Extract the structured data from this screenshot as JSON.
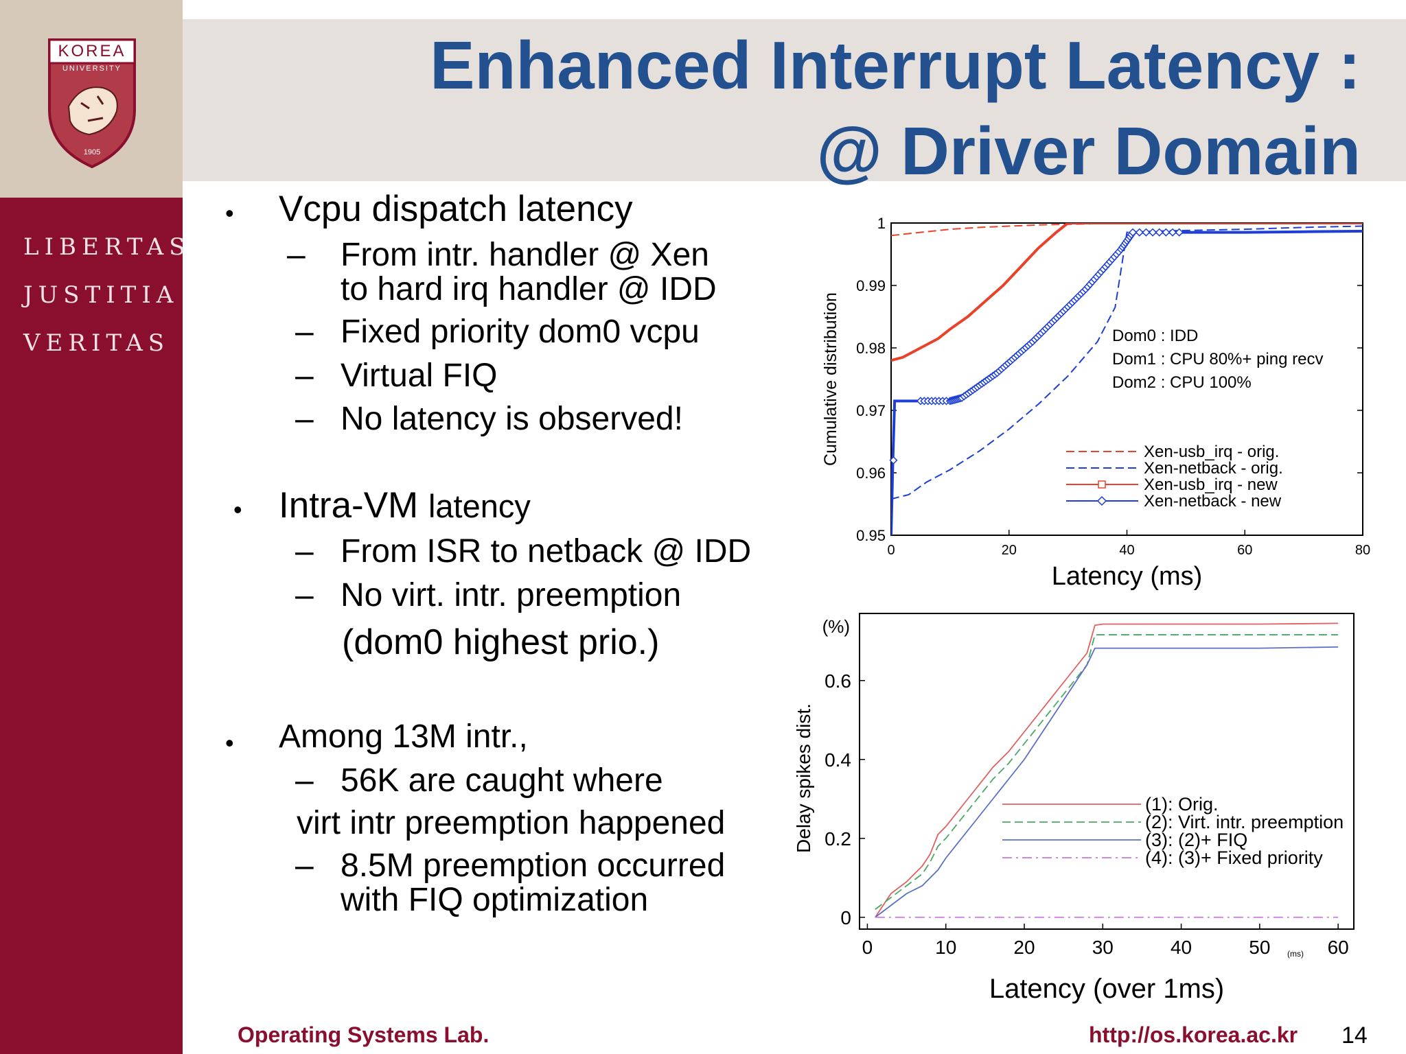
{
  "slide": {
    "title_line1": "Enhanced Interrupt Latency :",
    "title_line2": "@ Driver Domain",
    "footer_lab": "Operating Systems Lab.",
    "footer_url": "http://os.korea.ac.kr",
    "page_number": "14"
  },
  "logo": {
    "top_text": "KOREA",
    "sub_text": "UNIVERSITY",
    "year": "1905",
    "motto": [
      "LIBERTAS",
      "JUSTITIA",
      "VERITAS"
    ]
  },
  "bullets": [
    {
      "text": "Vcpu dispatch latency",
      "subs": [
        "From intr. handler @ Xen",
        "to hard irq handler @ IDD",
        "Fixed priority dom0 vcpu",
        "Virtual FIQ",
        "No latency is observed!"
      ]
    },
    {
      "text_main": "Intra-VM",
      "text_small": "latency",
      "subs": [
        "From ISR to netback @ IDD",
        "No virt. intr. preemption",
        "(dom0 highest prio.)"
      ]
    },
    {
      "text": "Among 13M intr.,",
      "subs": [
        "56K are caught where",
        "virt intr preemption happened",
        "8.5M preemption occurred",
        "with FIQ optimization"
      ]
    }
  ],
  "chart_data": [
    {
      "type": "line",
      "xlabel": "Latency (ms)",
      "ylabel": "Cumulative distribution",
      "xlim": [
        0,
        80
      ],
      "ylim": [
        0.95,
        1
      ],
      "xticks": [
        "0",
        "20",
        "40",
        "60",
        "80"
      ],
      "yticks": [
        "0.95",
        "0.96",
        "0.97",
        "0.98",
        "0.99",
        "1"
      ],
      "annotations": [
        "Dom0 : IDD",
        "Dom1 : CPU 80%+ ping recv",
        "Dom2 : CPU 100%"
      ],
      "legend_position": "bottom-right",
      "series": [
        {
          "name": "Xen-usb_irq - orig.",
          "color": "#e8422a",
          "style": "dashed",
          "x": [
            0,
            5,
            10,
            15,
            20,
            25,
            30,
            35,
            40,
            50,
            60,
            80
          ],
          "y": [
            0.998,
            0.9985,
            0.999,
            0.9993,
            0.9995,
            0.9997,
            0.9998,
            0.9999,
            1.0,
            1.0,
            1.0,
            1.0
          ]
        },
        {
          "name": "Xen-netback - orig.",
          "color": "#1d3fd6",
          "style": "dashed",
          "x": [
            0,
            3,
            6,
            10,
            15,
            20,
            25,
            30,
            35,
            38,
            40,
            45,
            50,
            60,
            70,
            80
          ],
          "y": [
            0.9558,
            0.9565,
            0.9585,
            0.9605,
            0.9635,
            0.967,
            0.971,
            0.9755,
            0.981,
            0.9865,
            0.9985,
            0.9987,
            0.9988,
            0.999,
            0.9993,
            0.9995
          ]
        },
        {
          "name": "Xen-usb_irq - new",
          "color": "#e8422a",
          "style": "solid",
          "marker": "square",
          "x": [
            0,
            2,
            5,
            8,
            10,
            13,
            16,
            19,
            22,
            25,
            28,
            30,
            38,
            80
          ],
          "y": [
            0.978,
            0.9785,
            0.98,
            0.9815,
            0.983,
            0.985,
            0.9875,
            0.99,
            0.993,
            0.996,
            0.9985,
            1.0,
            1.0,
            1.0
          ]
        },
        {
          "name": "Xen-netback - new",
          "color": "#1d3fd6",
          "style": "solid",
          "marker": "diamond",
          "x": [
            0,
            0.3,
            0.6,
            5,
            10,
            12,
            15,
            18,
            21,
            24,
            27,
            30,
            33,
            36,
            39,
            41,
            50,
            60,
            70,
            80
          ],
          "y": [
            0.95,
            0.962,
            0.9715,
            0.9715,
            0.9715,
            0.972,
            0.974,
            0.976,
            0.9785,
            0.981,
            0.9838,
            0.9866,
            0.9894,
            0.9926,
            0.9958,
            0.9985,
            0.9985,
            0.9985,
            0.9986,
            0.9987
          ]
        }
      ]
    },
    {
      "type": "line",
      "xlabel": "Latency (over 1ms)",
      "ylabel": "Delay spikes dist.",
      "yunit": "(%)",
      "xunit": "(ms)",
      "xlim": [
        0,
        60
      ],
      "ylim": [
        0,
        0.72
      ],
      "xticks": [
        "0",
        "10",
        "20",
        "30",
        "40",
        "50",
        "60"
      ],
      "yticks": [
        "0",
        "0.2",
        "0.4",
        "0.6"
      ],
      "legend_position": "center-right",
      "series": [
        {
          "name": "(1): Orig.",
          "color": "#e06060",
          "style": "solid",
          "x": [
            1,
            3,
            5,
            7,
            8,
            9,
            10,
            12,
            14,
            16,
            18,
            20,
            22,
            24,
            26,
            28,
            29,
            30,
            40,
            50,
            60
          ],
          "y": [
            0.0,
            0.06,
            0.09,
            0.13,
            0.16,
            0.21,
            0.23,
            0.28,
            0.33,
            0.38,
            0.42,
            0.47,
            0.52,
            0.57,
            0.62,
            0.67,
            0.74,
            0.743,
            0.743,
            0.743,
            0.745
          ]
        },
        {
          "name": "(2): Virt. intr. preemption",
          "color": "#4aa860",
          "style": "dashed",
          "x": [
            1,
            3,
            5,
            7,
            8,
            9,
            10,
            12,
            14,
            16,
            18,
            20,
            22,
            24,
            26,
            28,
            29,
            30,
            40,
            50,
            60
          ],
          "y": [
            0.02,
            0.05,
            0.08,
            0.11,
            0.14,
            0.18,
            0.2,
            0.25,
            0.3,
            0.35,
            0.39,
            0.44,
            0.49,
            0.54,
            0.59,
            0.64,
            0.716,
            0.716,
            0.716,
            0.716,
            0.716
          ]
        },
        {
          "name": "(3): (2)+ FIQ",
          "color": "#5a70c8",
          "style": "solid",
          "x": [
            1,
            3,
            5,
            7,
            9,
            10,
            12,
            14,
            16,
            18,
            20,
            22,
            24,
            26,
            28,
            29,
            30,
            40,
            50,
            60
          ],
          "y": [
            0.0,
            0.03,
            0.06,
            0.08,
            0.12,
            0.15,
            0.2,
            0.25,
            0.3,
            0.35,
            0.4,
            0.46,
            0.52,
            0.58,
            0.64,
            0.682,
            0.682,
            0.682,
            0.682,
            0.685
          ]
        },
        {
          "name": "(4): (3)+ Fixed priority",
          "color": "#c77ad6",
          "style": "dashdot",
          "x": [
            1,
            60
          ],
          "y": [
            0.0,
            0.0
          ]
        }
      ]
    }
  ]
}
